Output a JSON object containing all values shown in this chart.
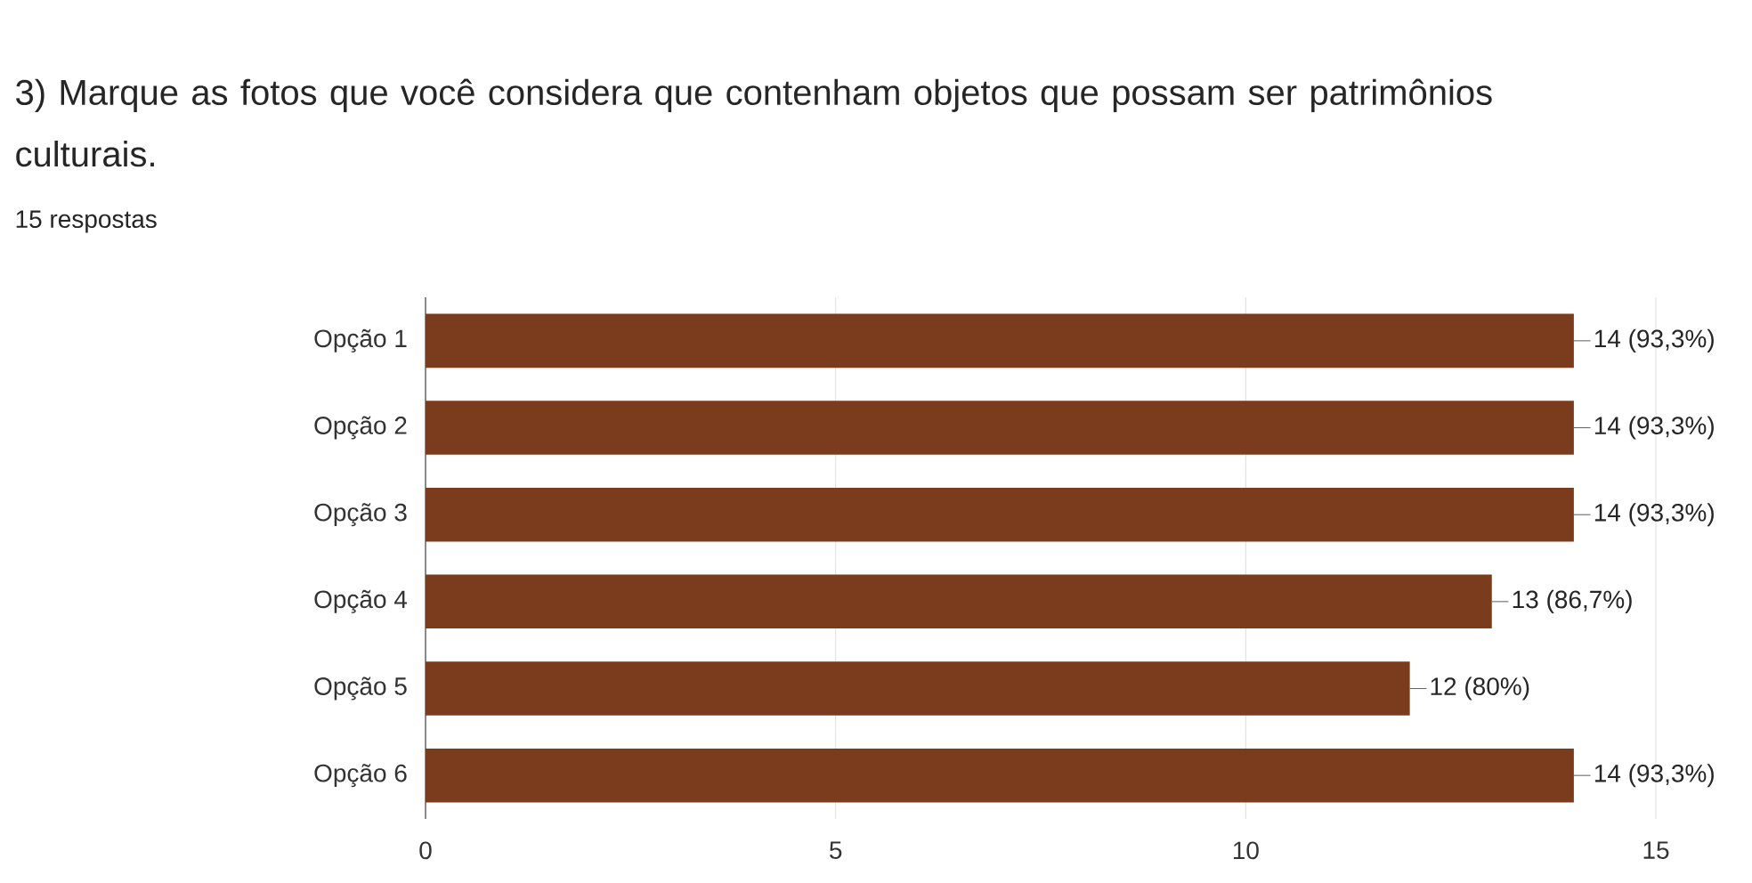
{
  "chart_data": {
    "type": "bar",
    "orientation": "horizontal",
    "title": "3) Marque as fotos que você considera que contenham objetos que possam ser patrimônios culturais.",
    "subtitle": "15 respostas",
    "categories": [
      "Opção 1",
      "Opção 2",
      "Opção 3",
      "Opção 4",
      "Opção 5",
      "Opção 6"
    ],
    "values": [
      14,
      14,
      14,
      13,
      12,
      14
    ],
    "value_labels": [
      "14 (93,3%)",
      "14 (93,3%)",
      "14 (93,3%)",
      "13 (86,7%)",
      "12 (80%)",
      "14 (93,3%)"
    ],
    "color": "#7b3b1d",
    "xlim": [
      0,
      15
    ],
    "xticks": [
      0,
      5,
      10,
      15
    ],
    "grid": "x"
  }
}
